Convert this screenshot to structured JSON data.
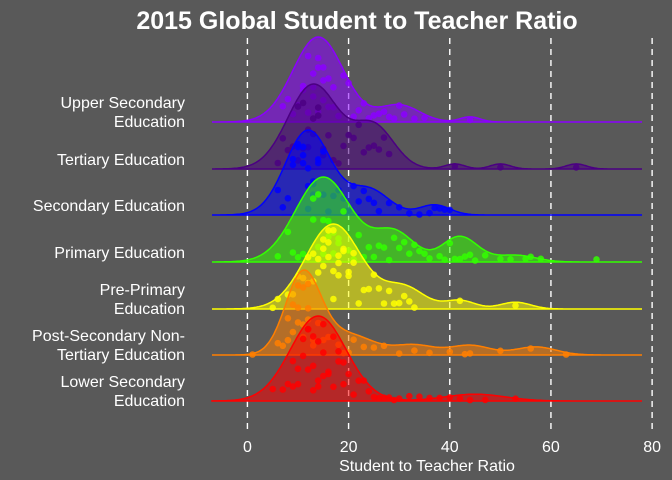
{
  "chart_data": {
    "type": "ridgeline",
    "title": "2015 Global Student to Teacher Ratio",
    "xlabel": "Student to Teacher Ratio",
    "ylabel": "",
    "xlim": [
      -7,
      78
    ],
    "xticks": [
      0,
      20,
      40,
      60,
      80
    ],
    "grid": "vertical dashed",
    "background": "#595959",
    "series": [
      {
        "name": "Lower Secondary Education",
        "color": "#ff0000",
        "peak": 14,
        "spread": 5.5,
        "secondary": [
          [
            45,
            0.08,
            6
          ]
        ],
        "points": [
          5,
          7,
          8,
          9,
          9,
          10,
          10,
          11,
          11,
          12,
          12,
          12,
          13,
          13,
          13,
          14,
          14,
          14,
          15,
          15,
          15,
          16,
          16,
          17,
          17,
          18,
          18,
          19,
          19,
          20,
          21,
          22,
          23,
          24,
          25,
          26,
          27,
          28,
          29,
          30,
          32,
          34,
          36,
          38,
          40,
          42,
          44,
          47,
          53
        ]
      },
      {
        "name": "Post-Secondary Non-Tertiary Education",
        "color": "#ff7f00",
        "peak": 11,
        "spread": 3.5,
        "secondary": [
          [
            20,
            0.25,
            5
          ],
          [
            33,
            0.12,
            4
          ],
          [
            44,
            0.12,
            4
          ],
          [
            57,
            0.1,
            4
          ]
        ],
        "points": [
          1,
          6,
          7,
          8,
          8,
          9,
          9,
          10,
          10,
          10,
          11,
          11,
          11,
          12,
          12,
          12,
          13,
          13,
          14,
          15,
          16,
          17,
          18,
          19,
          20,
          21,
          23,
          25,
          27,
          30,
          33,
          36,
          40,
          43,
          44,
          50,
          56,
          63
        ]
      },
      {
        "name": "Pre-Primary Education",
        "color": "#ffff00",
        "peak": 17,
        "spread": 5.5,
        "secondary": [
          [
            31,
            0.25,
            4
          ],
          [
            42,
            0.1,
            3
          ],
          [
            53,
            0.08,
            3
          ]
        ],
        "points": [
          5,
          6,
          8,
          9,
          10,
          11,
          12,
          12,
          13,
          13,
          14,
          14,
          15,
          15,
          15,
          16,
          16,
          16,
          17,
          17,
          17,
          18,
          18,
          18,
          19,
          19,
          20,
          20,
          21,
          21,
          22,
          23,
          24,
          25,
          26,
          27,
          28,
          29,
          30,
          31,
          32,
          33,
          42,
          53
        ]
      },
      {
        "name": "Primary Education",
        "color": "#33ff00",
        "peak": 15,
        "spread": 5.5,
        "secondary": [
          [
            29,
            0.35,
            4
          ],
          [
            42,
            0.3,
            3.5
          ],
          [
            53,
            0.08,
            4
          ]
        ],
        "points": [
          6,
          8,
          9,
          10,
          11,
          12,
          13,
          13,
          14,
          14,
          15,
          15,
          16,
          16,
          17,
          17,
          18,
          18,
          19,
          19,
          20,
          21,
          22,
          23,
          24,
          25,
          26,
          27,
          28,
          29,
          30,
          31,
          32,
          33,
          34,
          35,
          36,
          38,
          39,
          40,
          41,
          42,
          43,
          44,
          45,
          47,
          50,
          52,
          55,
          56,
          58,
          69
        ]
      },
      {
        "name": "Secondary Education",
        "color": "#0000ff",
        "peak": 12,
        "spread": 4.5,
        "secondary": [
          [
            24,
            0.3,
            4
          ],
          [
            37,
            0.12,
            3
          ]
        ],
        "points": [
          6,
          7,
          8,
          9,
          9,
          10,
          10,
          11,
          11,
          11,
          12,
          12,
          12,
          13,
          13,
          13,
          14,
          14,
          15,
          15,
          16,
          17,
          18,
          19,
          20,
          21,
          22,
          23,
          24,
          25,
          26,
          28,
          30,
          32,
          34,
          36,
          37,
          38,
          39,
          40
        ]
      },
      {
        "name": "Tertiary Education",
        "color": "#4b0082",
        "peak": 13,
        "spread": 5,
        "secondary": [
          [
            25,
            0.5,
            4
          ],
          [
            41,
            0.06,
            2
          ],
          [
            50,
            0.06,
            2
          ],
          [
            65,
            0.06,
            2
          ]
        ],
        "points": [
          6,
          7,
          8,
          9,
          10,
          10,
          11,
          11,
          12,
          12,
          13,
          13,
          14,
          14,
          15,
          15,
          16,
          17,
          18,
          19,
          20,
          21,
          22,
          23,
          24,
          25,
          26,
          27,
          28,
          41,
          50,
          65
        ]
      },
      {
        "name": "Upper Secondary Education",
        "color": "#8b00ff",
        "peak": 14,
        "spread": 5,
        "secondary": [
          [
            30,
            0.2,
            4
          ],
          [
            44,
            0.06,
            2
          ]
        ],
        "points": [
          7,
          8,
          9,
          10,
          11,
          11,
          12,
          12,
          13,
          13,
          13,
          14,
          14,
          14,
          15,
          15,
          15,
          16,
          16,
          17,
          17,
          18,
          19,
          20,
          21,
          22,
          23,
          24,
          25,
          26,
          27,
          28,
          29,
          30,
          31,
          33,
          35,
          44
        ]
      }
    ],
    "category_labels": [
      {
        "line1": "Lower Secondary",
        "line2": "Education"
      },
      {
        "line1": "Post-Secondary Non-",
        "line2": "Tertiary Education"
      },
      {
        "line1": "Pre-Primary",
        "line2": "Education"
      },
      {
        "line1": "Primary Education",
        "line2": ""
      },
      {
        "line1": "Secondary Education",
        "line2": ""
      },
      {
        "line1": "Tertiary Education",
        "line2": ""
      },
      {
        "line1": "Upper Secondary",
        "line2": "Education"
      }
    ]
  }
}
